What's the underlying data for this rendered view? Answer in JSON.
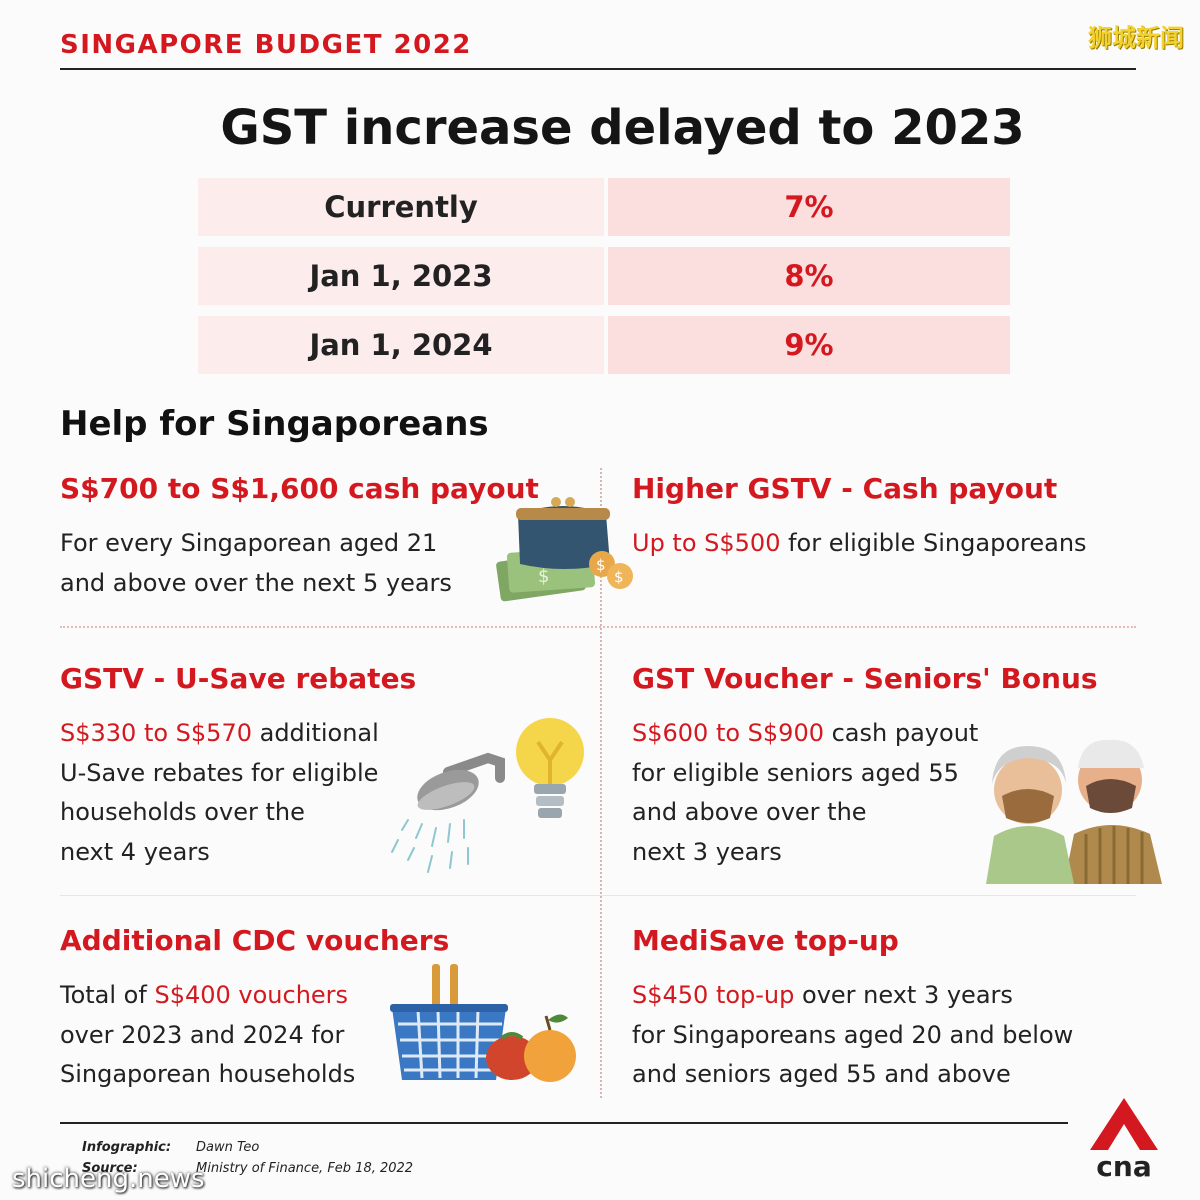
{
  "header": {
    "kicker": "SINGAPORE BUDGET 2022",
    "watermark": "狮城新闻"
  },
  "headline": "GST increase delayed to 2023",
  "rates": [
    {
      "label": "Currently",
      "value": "7%"
    },
    {
      "label": "Jan 1, 2023",
      "value": "8%"
    },
    {
      "label": "Jan 1, 2024",
      "value": "9%"
    }
  ],
  "help_heading": "Help for Singaporeans",
  "cards": {
    "cash_payout": {
      "title": "S$700 to S$1,600 cash payout",
      "line1": "For every Singaporean aged 21",
      "line2": "and above over the next 5 years"
    },
    "gstv_cash": {
      "title": "Higher GSTV - Cash payout",
      "highlight": "Up to S$500",
      "rest": " for eligible Singaporeans"
    },
    "usave": {
      "title": "GSTV - U-Save rebates",
      "highlight": "S$330 to S$570",
      "rest1": " additional",
      "line2": "U-Save rebates for eligible",
      "line3": "households over the",
      "line4": "next 4 years"
    },
    "seniors": {
      "title": "GST Voucher - Seniors' Bonus",
      "highlight": "S$600 to S$900",
      "rest1": " cash payout",
      "line2": "for eligible seniors aged 55",
      "line3": "and above over the",
      "line4": "next 3 years"
    },
    "cdc": {
      "title": "Additional CDC vouchers",
      "prefix": "Total of ",
      "highlight": "S$400 vouchers",
      "line2": "over 2023 and 2024 for",
      "line3": "Singaporean households"
    },
    "medisave": {
      "title": "MediSave top-up",
      "highlight": "S$450 top-up",
      "rest1": " over next 3 years",
      "line2": "for Singaporeans aged 20 and below",
      "line3": "and seniors aged 55 and above"
    }
  },
  "credits": {
    "infographic_label": "Infographic:",
    "infographic_value": "Dawn Teo",
    "source_label": "Source:",
    "source_value": "Ministry of Finance, Feb 18, 2022"
  },
  "logo_text": "cna",
  "bottom_watermark": "shicheng.news",
  "colors": {
    "accent": "#d3191f",
    "row_left": "#fcecec",
    "row_right": "#fbdede"
  }
}
